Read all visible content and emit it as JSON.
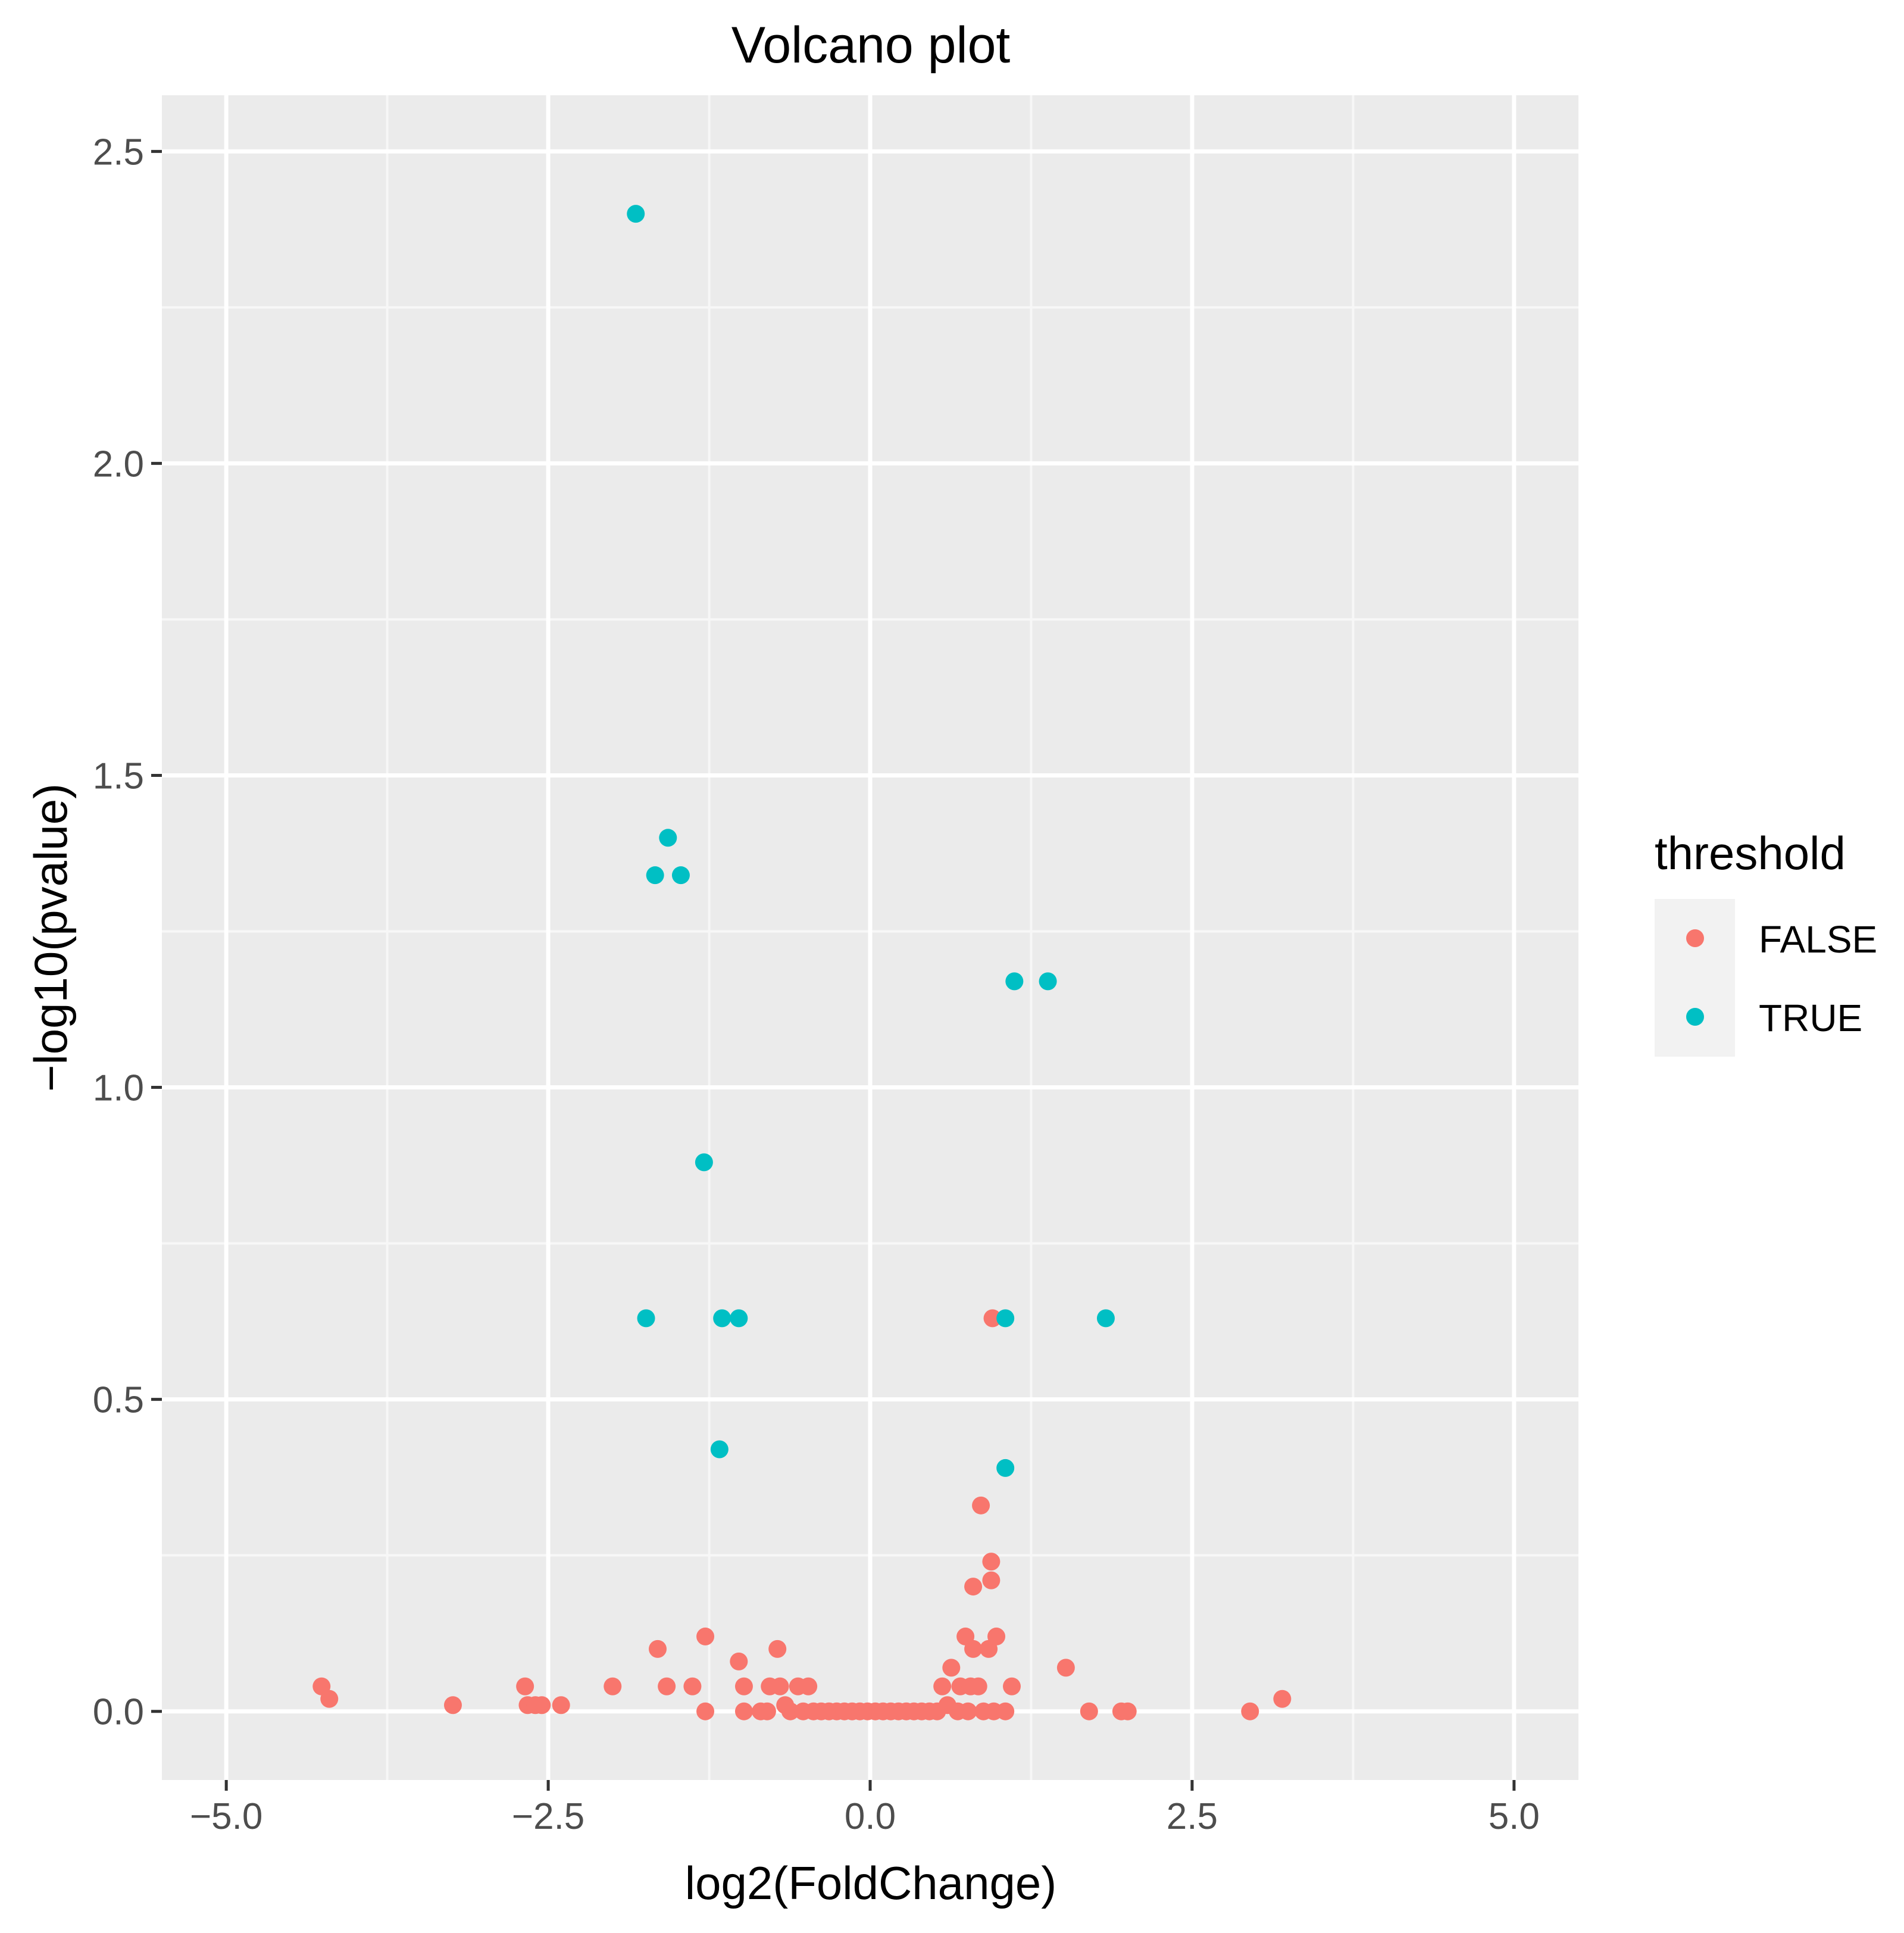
{
  "chart_data": {
    "type": "scatter",
    "title": "Volcano plot",
    "xlabel": "log2(FoldChange)",
    "ylabel": "−log10(pvalue)",
    "xlim": [
      -5.5,
      5.5
    ],
    "ylim": [
      -0.11,
      2.59
    ],
    "x_ticks": [
      -5.0,
      -2.5,
      0.0,
      2.5,
      5.0
    ],
    "x_tick_labels": [
      "−5.0",
      "−2.5",
      "0.0",
      "2.5",
      "5.0"
    ],
    "y_ticks": [
      0.0,
      0.5,
      1.0,
      1.5,
      2.0,
      2.5
    ],
    "y_tick_labels": [
      "0.0",
      "0.5",
      "1.0",
      "1.5",
      "2.0",
      "2.5"
    ],
    "grid": true,
    "legend": {
      "title": "threshold",
      "position": "right",
      "entries": [
        {
          "label": "FALSE",
          "color": "#F8766D"
        },
        {
          "label": "TRUE",
          "color": "#00BFC4"
        }
      ]
    },
    "background_color": "#EBEBEB",
    "series": [
      {
        "name": "FALSE",
        "color": "#F8766D",
        "points": [
          [
            -4.26,
            0.04
          ],
          [
            -4.2,
            0.02
          ],
          [
            -3.24,
            0.01
          ],
          [
            -2.68,
            0.04
          ],
          [
            -2.66,
            0.01
          ],
          [
            -2.6,
            0.01
          ],
          [
            -2.55,
            0.01
          ],
          [
            -2.4,
            0.01
          ],
          [
            -2.0,
            0.04
          ],
          [
            -1.65,
            0.1
          ],
          [
            -1.58,
            0.04
          ],
          [
            -1.38,
            0.04
          ],
          [
            -1.28,
            0.12
          ],
          [
            -1.28,
            0.0
          ],
          [
            -1.02,
            0.08
          ],
          [
            -0.98,
            0.04
          ],
          [
            -0.98,
            0.0
          ],
          [
            -0.85,
            0.0
          ],
          [
            -0.8,
            0.0
          ],
          [
            -0.78,
            0.04
          ],
          [
            -0.72,
            0.1
          ],
          [
            -0.7,
            0.04
          ],
          [
            -0.66,
            0.01
          ],
          [
            -0.62,
            0.0
          ],
          [
            -0.56,
            0.04
          ],
          [
            -0.52,
            0.0
          ],
          [
            -0.48,
            0.04
          ],
          [
            -0.44,
            0.0
          ],
          [
            -0.38,
            0.0
          ],
          [
            -0.32,
            0.0
          ],
          [
            -0.26,
            0.0
          ],
          [
            -0.2,
            0.0
          ],
          [
            -0.14,
            0.0
          ],
          [
            -0.08,
            0.0
          ],
          [
            -0.02,
            0.0
          ],
          [
            0.04,
            0.0
          ],
          [
            0.1,
            0.0
          ],
          [
            0.16,
            0.0
          ],
          [
            0.22,
            0.0
          ],
          [
            0.28,
            0.0
          ],
          [
            0.34,
            0.0
          ],
          [
            0.4,
            0.0
          ],
          [
            0.46,
            0.0
          ],
          [
            0.52,
            0.0
          ],
          [
            0.56,
            0.04
          ],
          [
            0.6,
            0.01
          ],
          [
            0.63,
            0.07
          ],
          [
            0.68,
            0.0
          ],
          [
            0.7,
            0.04
          ],
          [
            0.74,
            0.12
          ],
          [
            0.76,
            0.0
          ],
          [
            0.78,
            0.04
          ],
          [
            0.8,
            0.1
          ],
          [
            0.8,
            0.2
          ],
          [
            0.84,
            0.04
          ],
          [
            0.86,
            0.33
          ],
          [
            0.88,
            0.0
          ],
          [
            0.92,
            0.1
          ],
          [
            0.94,
            0.24
          ],
          [
            0.94,
            0.21
          ],
          [
            0.95,
            0.63
          ],
          [
            0.96,
            0.0
          ],
          [
            0.98,
            0.12
          ],
          [
            1.05,
            0.0
          ],
          [
            1.1,
            0.04
          ],
          [
            1.52,
            0.07
          ],
          [
            1.7,
            0.0
          ],
          [
            1.95,
            0.0
          ],
          [
            2.0,
            0.0
          ],
          [
            2.95,
            0.0
          ],
          [
            3.2,
            0.02
          ]
        ]
      },
      {
        "name": "TRUE",
        "color": "#00BFC4",
        "points": [
          [
            -1.82,
            2.4
          ],
          [
            -1.57,
            1.4
          ],
          [
            -1.67,
            1.34
          ],
          [
            -1.47,
            1.34
          ],
          [
            -1.29,
            0.88
          ],
          [
            -1.74,
            0.63
          ],
          [
            -1.15,
            0.63
          ],
          [
            -1.02,
            0.63
          ],
          [
            -1.17,
            0.42
          ],
          [
            1.12,
            1.17
          ],
          [
            1.38,
            1.17
          ],
          [
            1.05,
            0.63
          ],
          [
            1.83,
            0.63
          ],
          [
            1.05,
            0.39
          ]
        ]
      }
    ]
  }
}
